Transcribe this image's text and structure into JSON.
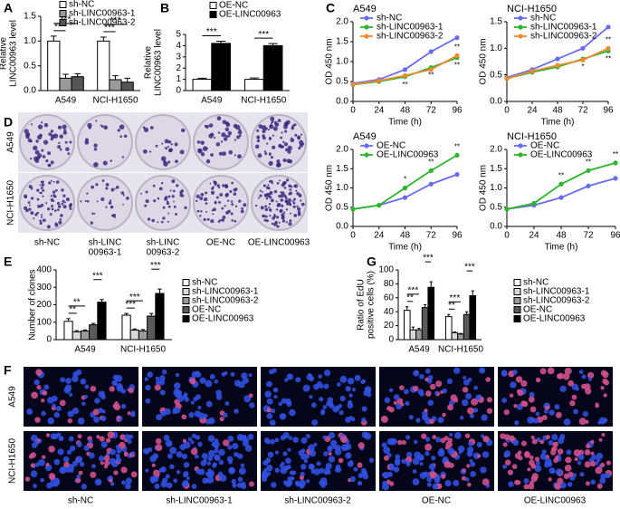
{
  "chart_data": [
    {
      "type": "bar",
      "panel": "A",
      "ylabel": [
        "Relative",
        "LINC00963 level"
      ],
      "categories": [
        "A549",
        "NCI-H1650"
      ],
      "ylim": [
        0,
        1.5
      ],
      "yticks": [
        {
          "value": 0,
          "label": "0.0"
        },
        {
          "value": 0.5,
          "label": "0.5"
        },
        {
          "value": 1,
          "label": "1.0"
        },
        {
          "value": 1.5,
          "label": "1.5"
        }
      ],
      "series": [
        {
          "name": "sh-NC",
          "color": "#ffffff",
          "values": [
            1.0,
            1.0
          ],
          "errors": [
            0.1,
            0.08
          ],
          "significance": [
            null,
            null
          ]
        },
        {
          "name": "sh-LINC00963-1",
          "color": "#9a9a9a",
          "values": [
            0.25,
            0.22
          ],
          "errors": [
            0.08,
            0.08
          ],
          "significance": [
            "***",
            "***"
          ]
        },
        {
          "name": "sh-LINC00963-2",
          "color": "#555555",
          "values": [
            0.28,
            0.17
          ],
          "errors": [
            0.06,
            0.08
          ],
          "significance": [
            "***",
            "***"
          ]
        }
      ]
    },
    {
      "type": "bar",
      "panel": "B",
      "ylabel": [
        "Relative",
        "LINC00963 level"
      ],
      "categories": [
        "A549",
        "NCI-H1650"
      ],
      "ylim": [
        0,
        5
      ],
      "yticks": [
        0,
        1,
        2,
        3,
        4,
        5
      ],
      "series": [
        {
          "name": "OE-NC",
          "color": "#ffffff",
          "values": [
            1.0,
            1.0
          ],
          "errors": [
            0.1,
            0.12
          ],
          "significance": [
            null,
            null
          ]
        },
        {
          "name": "OE-LINC00963",
          "color": "#000000",
          "values": [
            4.2,
            4.0
          ],
          "errors": [
            0.2,
            0.18
          ],
          "significance": [
            "***",
            "***"
          ]
        }
      ]
    },
    {
      "type": "line",
      "panel": "C",
      "title": "A549",
      "xlabel": "Time (h)",
      "ylabel": "OD 450 nm",
      "x": [
        0,
        24,
        48,
        72,
        96
      ],
      "xlim": [
        0,
        96
      ],
      "xticks": [
        0,
        24,
        48,
        72,
        96
      ],
      "ylim": [
        0,
        2
      ],
      "yticks": [
        {
          "value": 0,
          "label": "0.0"
        },
        {
          "value": 0.5,
          "label": "0.5"
        },
        {
          "value": 1,
          "label": "1.0"
        },
        {
          "value": 1.5,
          "label": "1.5"
        },
        {
          "value": 2,
          "label": "2.0"
        }
      ],
      "series": [
        {
          "name": "sh-NC",
          "color": "#6a6cf0",
          "values": [
            0.45,
            0.55,
            0.8,
            1.25,
            1.6
          ],
          "significance": [
            null,
            null,
            null,
            null,
            null
          ]
        },
        {
          "name": "sh-LINC00963-1",
          "color": "#2db52d",
          "values": [
            0.42,
            0.5,
            0.62,
            0.85,
            1.1
          ],
          "significance": [
            null,
            null,
            "**",
            "**",
            "**"
          ]
        },
        {
          "name": "sh-LINC00963-2",
          "color": "#f08a30",
          "values": [
            0.43,
            0.52,
            0.65,
            0.8,
            1.15
          ],
          "significance": [
            null,
            null,
            null,
            null,
            "**"
          ]
        }
      ]
    },
    {
      "type": "line",
      "title": "NCI-H1650",
      "xlabel": "Time (h)",
      "ylabel": "OD 450 nm",
      "x": [
        0,
        24,
        48,
        72,
        96
      ],
      "xlim": [
        0,
        96
      ],
      "xticks": [
        0,
        24,
        48,
        72,
        96
      ],
      "ylim": [
        0,
        1.5
      ],
      "yticks": [
        {
          "value": 0,
          "label": "0.0"
        },
        {
          "value": 0.5,
          "label": "0.5"
        },
        {
          "value": 1,
          "label": "1.0"
        },
        {
          "value": 1.5,
          "label": "1.5"
        }
      ],
      "series": [
        {
          "name": "sh-NC",
          "color": "#6a6cf0",
          "values": [
            0.45,
            0.6,
            0.8,
            1.0,
            1.4
          ],
          "significance": [
            null,
            null,
            null,
            null,
            null
          ]
        },
        {
          "name": "sh-LINC00963-1",
          "color": "#2db52d",
          "values": [
            0.43,
            0.55,
            0.65,
            0.8,
            0.95
          ],
          "significance": [
            null,
            null,
            null,
            "*",
            "**"
          ]
        },
        {
          "name": "sh-LINC00963-2",
          "color": "#f08a30",
          "values": [
            0.43,
            0.57,
            0.68,
            0.78,
            1.0
          ],
          "significance": [
            null,
            null,
            null,
            null,
            "**"
          ]
        }
      ]
    },
    {
      "type": "line",
      "title": "A549",
      "xlabel": "Time (h)",
      "ylabel": "OD 450 nm",
      "x": [
        0,
        24,
        48,
        72,
        96
      ],
      "xlim": [
        0,
        96
      ],
      "xticks": [
        0,
        24,
        48,
        72,
        96
      ],
      "ylim": [
        0,
        2
      ],
      "yticks": [
        {
          "value": 0,
          "label": "0.0"
        },
        {
          "value": 0.5,
          "label": "0.5"
        },
        {
          "value": 1,
          "label": "1.0"
        },
        {
          "value": 1.5,
          "label": "1.5"
        },
        {
          "value": 2,
          "label": "2.0"
        }
      ],
      "series": [
        {
          "name": "OE-NC",
          "color": "#6a6cf0",
          "values": [
            0.45,
            0.55,
            0.75,
            1.1,
            1.35
          ],
          "significance": [
            null,
            null,
            null,
            null,
            null
          ]
        },
        {
          "name": "OE-LINC00963",
          "color": "#2db52d",
          "values": [
            0.45,
            0.55,
            1.0,
            1.45,
            1.85
          ],
          "significance": [
            null,
            null,
            "*",
            "**",
            "**"
          ]
        }
      ]
    },
    {
      "type": "line",
      "title": "NCI-H1650",
      "xlabel": "Time (h)",
      "ylabel": "OD 450 nm",
      "x": [
        0,
        24,
        48,
        72,
        96
      ],
      "xlim": [
        0,
        96
      ],
      "xticks": [
        0,
        24,
        48,
        72,
        96
      ],
      "ylim": [
        0,
        2
      ],
      "yticks": [
        {
          "value": 0,
          "label": "0.0"
        },
        {
          "value": 0.5,
          "label": "0.5"
        },
        {
          "value": 1,
          "label": "1.0"
        },
        {
          "value": 1.5,
          "label": "1.5"
        },
        {
          "value": 2,
          "label": "2.0"
        }
      ],
      "series": [
        {
          "name": "OE-NC",
          "color": "#6a6cf0",
          "values": [
            0.45,
            0.55,
            0.75,
            1.05,
            1.25
          ],
          "significance": [
            null,
            null,
            null,
            null,
            null
          ]
        },
        {
          "name": "OE-LINC00963",
          "color": "#2db52d",
          "values": [
            0.45,
            0.6,
            1.1,
            1.45,
            1.65
          ],
          "significance": [
            null,
            null,
            "**",
            "**",
            "**"
          ]
        }
      ]
    },
    {
      "type": "bar",
      "panel": "E",
      "ylabel": [
        "Number of clones"
      ],
      "categories": [
        "A549",
        "NCI-H1650"
      ],
      "ylim": [
        0,
        400
      ],
      "yticks": [
        0,
        100,
        200,
        300,
        400
      ],
      "series": [
        {
          "name": "sh-NC",
          "color": "#ffffff",
          "values": [
            105,
            140
          ],
          "errors": [
            15,
            10
          ],
          "significance": [
            null,
            null
          ]
        },
        {
          "name": "sh-LINC00963-1",
          "color": "#d8d8d8",
          "values": [
            45,
            55
          ],
          "errors": [
            6,
            6
          ],
          "significance": [
            "**",
            "***"
          ]
        },
        {
          "name": "sh-LINC00963-2",
          "color": "#9a9a9a",
          "values": [
            50,
            50
          ],
          "errors": [
            6,
            8
          ],
          "significance": [
            "**",
            "***"
          ]
        },
        {
          "name": "OE-NC",
          "color": "#5a5a5a",
          "values": [
            85,
            135
          ],
          "errors": [
            8,
            15
          ],
          "significance": [
            null,
            null
          ]
        },
        {
          "name": "OE-LINC00963",
          "color": "#000000",
          "values": [
            215,
            265
          ],
          "errors": [
            15,
            25
          ],
          "significance": [
            "***",
            "***"
          ]
        }
      ]
    },
    {
      "type": "bar",
      "panel": "G",
      "ylabel": [
        "Ratio of EdU",
        "positive cells (%)"
      ],
      "categories": [
        "A549",
        "NCI-H1650"
      ],
      "ylim": [
        0,
        100
      ],
      "yticks": [
        0,
        20,
        40,
        60,
        80,
        100
      ],
      "series": [
        {
          "name": "sh-NC",
          "color": "#ffffff",
          "values": [
            42,
            33
          ],
          "errors": [
            5,
            3
          ],
          "significance": [
            null,
            null
          ]
        },
        {
          "name": "sh-LINC00963-1",
          "color": "#d8d8d8",
          "values": [
            14,
            10
          ],
          "errors": [
            4,
            1
          ],
          "significance": [
            "**",
            "**"
          ]
        },
        {
          "name": "sh-LINC00963-2",
          "color": "#9a9a9a",
          "values": [
            14,
            8
          ],
          "errors": [
            2,
            1
          ],
          "significance": [
            "***",
            "***"
          ]
        },
        {
          "name": "OE-NC",
          "color": "#5a5a5a",
          "values": [
            46,
            36
          ],
          "errors": [
            4,
            4
          ],
          "significance": [
            null,
            null
          ]
        },
        {
          "name": "OE-LINC00963",
          "color": "#000000",
          "values": [
            75,
            63
          ],
          "errors": [
            8,
            7
          ],
          "significance": [
            "***",
            "***"
          ]
        }
      ]
    }
  ],
  "panel_d": {
    "label": "D",
    "rows": [
      "A549",
      "NCI-H1650"
    ],
    "columns": [
      [
        "sh-NC"
      ],
      [
        "sh-LINC",
        "00963-1"
      ],
      [
        "sh-LINC",
        "00963-2"
      ],
      [
        "OE-NC"
      ],
      [
        "OE-LINC00963"
      ]
    ]
  },
  "panel_f": {
    "label": "F",
    "rows": [
      "A549",
      "NCI-H1650"
    ],
    "columns": [
      "sh-NC",
      "sh-LINC00963-1",
      "sh-LINC00963-2",
      "OE-NC",
      "OE-LINC00963"
    ]
  }
}
